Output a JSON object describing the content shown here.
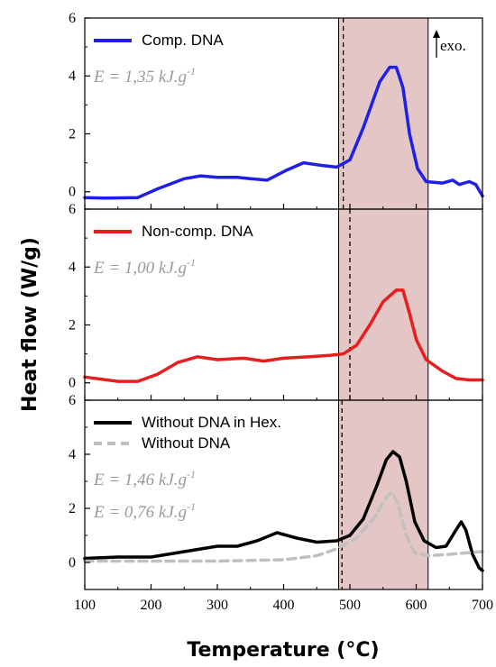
{
  "chart_data": {
    "type": "line",
    "xlabel": "Temperature (°C)",
    "ylabel": "Heat flow (W/g)",
    "xlim": [
      100,
      700
    ],
    "x_ticks": [
      100,
      200,
      300,
      400,
      500,
      600,
      700
    ],
    "shaded_region": {
      "x_range": [
        483,
        618
      ],
      "color": "#dbb3b3"
    },
    "exo_label": "exo.",
    "panels": [
      {
        "id": "top",
        "ylim": [
          -0.6,
          6
        ],
        "y_ticks": [
          0,
          2,
          4,
          6
        ],
        "y_tick_labels": [
          "0",
          "2",
          "4",
          "6"
        ],
        "dashed_line_x": 490,
        "show_exo": true,
        "energy_labels": [
          "E = 1,35 kJ.g-1"
        ],
        "energy_prefix": [
          "E = 1,35 kJ.g"
        ],
        "energy_exp": [
          "-1"
        ],
        "series": [
          {
            "name": "Comp. DNA",
            "color": "#1f1fe6",
            "dashed": false,
            "points": [
              [
                100,
                -0.2
              ],
              [
                130,
                -0.22
              ],
              [
                180,
                -0.2
              ],
              [
                210,
                0.1
              ],
              [
                250,
                0.45
              ],
              [
                275,
                0.55
              ],
              [
                300,
                0.5
              ],
              [
                330,
                0.5
              ],
              [
                350,
                0.45
              ],
              [
                375,
                0.4
              ],
              [
                405,
                0.75
              ],
              [
                430,
                1.0
              ],
              [
                460,
                0.9
              ],
              [
                480,
                0.85
              ],
              [
                500,
                1.1
              ],
              [
                520,
                2.2
              ],
              [
                545,
                3.8
              ],
              [
                560,
                4.3
              ],
              [
                570,
                4.3
              ],
              [
                580,
                3.6
              ],
              [
                590,
                2.0
              ],
              [
                602,
                0.8
              ],
              [
                615,
                0.35
              ],
              [
                640,
                0.3
              ],
              [
                655,
                0.4
              ],
              [
                665,
                0.25
              ],
              [
                680,
                0.35
              ],
              [
                690,
                0.25
              ],
              [
                700,
                -0.15
              ]
            ]
          }
        ]
      },
      {
        "id": "middle",
        "ylim": [
          -0.6,
          6
        ],
        "y_ticks": [
          0,
          2,
          4,
          6
        ],
        "y_tick_labels": [
          "0",
          "2",
          "4",
          "6"
        ],
        "dashed_line_x": 500,
        "show_exo": false,
        "energy_labels": [
          "E = 1,00 kJ.g-1"
        ],
        "energy_prefix": [
          "E = 1,00 kJ.g"
        ],
        "energy_exp": [
          "-1"
        ],
        "series": [
          {
            "name": "Non-comp. DNA",
            "color": "#e61e1e",
            "dashed": false,
            "points": [
              [
                100,
                0.2
              ],
              [
                150,
                0.05
              ],
              [
                180,
                0.05
              ],
              [
                210,
                0.3
              ],
              [
                240,
                0.7
              ],
              [
                270,
                0.9
              ],
              [
                300,
                0.8
              ],
              [
                340,
                0.85
              ],
              [
                370,
                0.75
              ],
              [
                400,
                0.85
              ],
              [
                440,
                0.9
              ],
              [
                470,
                0.95
              ],
              [
                490,
                1.0
              ],
              [
                510,
                1.3
              ],
              [
                530,
                2.0
              ],
              [
                550,
                2.8
              ],
              [
                570,
                3.2
              ],
              [
                580,
                3.2
              ],
              [
                590,
                2.4
              ],
              [
                600,
                1.5
              ],
              [
                615,
                0.8
              ],
              [
                640,
                0.4
              ],
              [
                660,
                0.15
              ],
              [
                680,
                0.1
              ],
              [
                700,
                0.1
              ]
            ]
          }
        ]
      },
      {
        "id": "bottom",
        "ylim": [
          -1.0,
          6
        ],
        "y_ticks": [
          0,
          2,
          4,
          6
        ],
        "y_tick_labels": [
          "0",
          "2",
          "4",
          "6"
        ],
        "dashed_line_x": 488,
        "show_exo": false,
        "energy_labels": [
          "E = 1,46 kJ.g-1",
          "E = 0,76 kJ.g-1"
        ],
        "energy_prefix": [
          "E = 1,46 kJ.g",
          "E = 0,76 kJ.g"
        ],
        "energy_exp": [
          "-1",
          "-1"
        ],
        "series": [
          {
            "name": "Without DNA in Hex.",
            "color": "#000000",
            "dashed": false,
            "points": [
              [
                100,
                0.15
              ],
              [
                150,
                0.2
              ],
              [
                200,
                0.2
              ],
              [
                250,
                0.4
              ],
              [
                300,
                0.6
              ],
              [
                330,
                0.6
              ],
              [
                360,
                0.8
              ],
              [
                390,
                1.1
              ],
              [
                420,
                0.9
              ],
              [
                450,
                0.75
              ],
              [
                480,
                0.8
              ],
              [
                500,
                1.0
              ],
              [
                520,
                1.6
              ],
              [
                540,
                2.8
              ],
              [
                555,
                3.8
              ],
              [
                565,
                4.1
              ],
              [
                575,
                3.9
              ],
              [
                585,
                3.0
              ],
              [
                598,
                1.5
              ],
              [
                612,
                0.8
              ],
              [
                630,
                0.55
              ],
              [
                645,
                0.6
              ],
              [
                660,
                1.2
              ],
              [
                668,
                1.5
              ],
              [
                675,
                1.2
              ],
              [
                685,
                0.3
              ],
              [
                695,
                -0.2
              ],
              [
                700,
                -0.3
              ]
            ]
          },
          {
            "name": "Without DNA",
            "color": "#c0c0c0",
            "dashed": true,
            "points": [
              [
                100,
                0.05
              ],
              [
                200,
                0.05
              ],
              [
                300,
                0.05
              ],
              [
                400,
                0.1
              ],
              [
                450,
                0.25
              ],
              [
                480,
                0.5
              ],
              [
                510,
                0.9
              ],
              [
                535,
                1.6
              ],
              [
                555,
                2.4
              ],
              [
                563,
                2.6
              ],
              [
                572,
                2.2
              ],
              [
                585,
                1.0
              ],
              [
                598,
                0.35
              ],
              [
                620,
                0.25
              ],
              [
                650,
                0.3
              ],
              [
                700,
                0.4
              ]
            ]
          }
        ]
      }
    ]
  }
}
